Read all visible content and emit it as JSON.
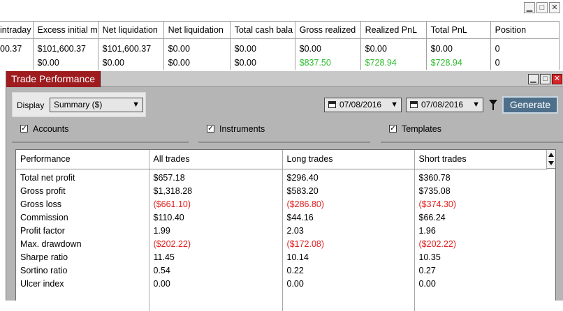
{
  "accounts_window": {
    "columns": [
      "intraday",
      "Excess initial m",
      "Net liquidation",
      "Net liquidation",
      "Total cash bala",
      "Gross realized",
      "Realized PnL",
      "Total PnL",
      "Position"
    ],
    "rows": [
      [
        "00.37",
        "$101,600.37",
        "$101,600.37",
        "$0.00",
        "$0.00",
        "$0.00",
        "$0.00",
        "$0.00",
        "0"
      ],
      [
        "",
        "$0.00",
        "$0.00",
        "$0.00",
        "$0.00",
        "$837.50",
        "$728.94",
        "$728.94",
        "0"
      ]
    ],
    "controls": {
      "minimize": "▁",
      "maximize": "□",
      "close": "✕"
    }
  },
  "trade_performance": {
    "title": "Trade Performance",
    "controls": {
      "minimize": "▁",
      "maximize": "□",
      "close": "✕"
    },
    "toolbar": {
      "display_label": "Display",
      "display_value": "Summary ($)",
      "date_from": "07/08/2016",
      "date_to": "07/08/2016",
      "generate_label": "Generate"
    },
    "filters": {
      "accounts": "Accounts",
      "instruments": "Instruments",
      "templates": "Templates"
    },
    "table": {
      "headers": [
        "Performance",
        "All trades",
        "Long trades",
        "Short trades"
      ],
      "rows": [
        {
          "metric": "Total net profit",
          "all": "$657.18",
          "long": "$296.40",
          "short": "$360.78"
        },
        {
          "metric": "Gross profit",
          "all": "$1,318.28",
          "long": "$583.20",
          "short": "$735.08"
        },
        {
          "metric": "Gross loss",
          "all": "($661.10)",
          "long": "($286.80)",
          "short": "($374.30)"
        },
        {
          "metric": "Commission",
          "all": "$110.40",
          "long": "$44.16",
          "short": "$66.24"
        },
        {
          "metric": "Profit factor",
          "all": "1.99",
          "long": "2.03",
          "short": "1.96"
        },
        {
          "metric": "Max. drawdown",
          "all": "($202.22)",
          "long": "($172.08)",
          "short": "($202.22)"
        },
        {
          "metric": "Sharpe ratio",
          "all": "11.45",
          "long": "10.14",
          "short": "10.35"
        },
        {
          "metric": "Sortino ratio",
          "all": "0.54",
          "long": "0.22",
          "short": "0.27"
        },
        {
          "metric": "Ulcer index",
          "all": "0.00",
          "long": "0.00",
          "short": "0.00"
        }
      ]
    }
  },
  "colors": {
    "title_bar": "#9e1b1e",
    "positive": "#2ebd2e",
    "negative": "#e02020",
    "generate_button": "#4e6f8a"
  }
}
